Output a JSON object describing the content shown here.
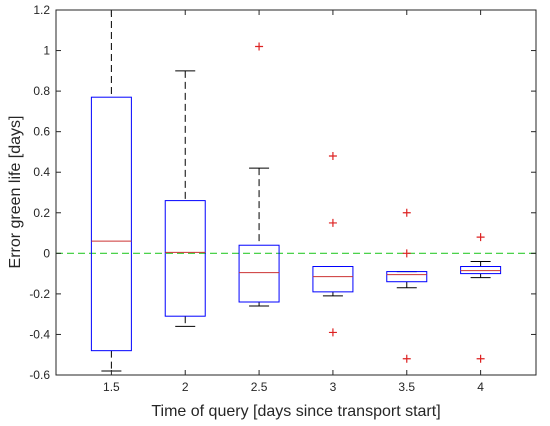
{
  "chart_data": {
    "type": "box",
    "xlabel": "Time of query [days since transport start]",
    "ylabel": "Error green life [days]",
    "ylim": [
      -0.6,
      1.2
    ],
    "yticks": [
      "-0.6",
      "-0.4",
      "-0.2",
      "0",
      "0.2",
      "0.4",
      "0.6",
      "0.8",
      "1",
      "1.2"
    ],
    "grid": false,
    "reference_line": {
      "y": 0,
      "style": "dashed",
      "color": "#33cc33"
    },
    "colors": {
      "box": "#0000ff",
      "median": "#cc3333",
      "whisker": "#000000",
      "outlier": "#dd2222"
    },
    "boxes": [
      {
        "label": "1.5",
        "whisker_low": -0.58,
        "q1": -0.48,
        "median": 0.06,
        "q3": 0.77,
        "whisker_high": 1.2,
        "outliers": []
      },
      {
        "label": "2",
        "whisker_low": -0.36,
        "q1": -0.31,
        "median": 0.005,
        "q3": 0.26,
        "whisker_high": 0.9,
        "outliers": []
      },
      {
        "label": "2.5",
        "whisker_low": -0.26,
        "q1": -0.24,
        "median": -0.095,
        "q3": 0.04,
        "whisker_high": 0.42,
        "outliers": [
          1.02
        ]
      },
      {
        "label": "3",
        "whisker_low": -0.21,
        "q1": -0.19,
        "median": -0.115,
        "q3": -0.065,
        "whisker_high": -0.065,
        "outliers": [
          0.48,
          0.15,
          -0.39
        ]
      },
      {
        "label": "3.5",
        "whisker_low": -0.17,
        "q1": -0.14,
        "median": -0.105,
        "q3": -0.09,
        "whisker_high": -0.09,
        "outliers": [
          0.2,
          0.0,
          -0.52
        ]
      },
      {
        "label": "4",
        "whisker_low": -0.12,
        "q1": -0.1,
        "median": -0.085,
        "q3": -0.065,
        "whisker_high": -0.04,
        "outliers": [
          0.08,
          -0.52
        ]
      }
    ]
  }
}
